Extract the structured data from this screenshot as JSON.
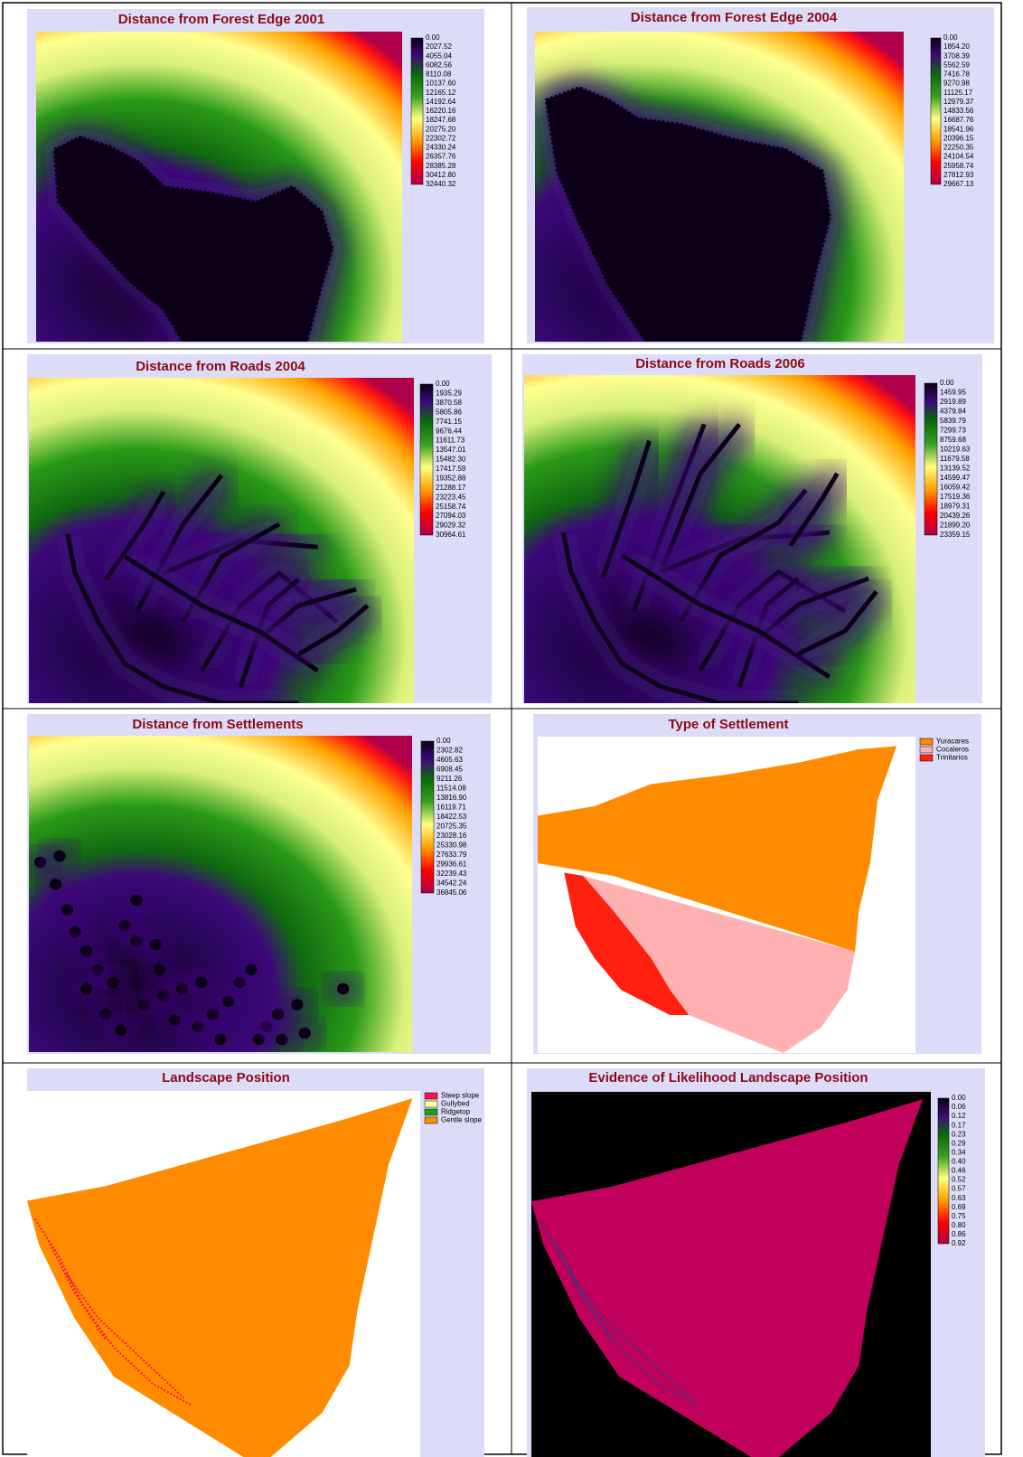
{
  "panels": [
    {
      "title": "Distance from Forest Edge 2001",
      "legend": [
        "0.00",
        "2027.52",
        "4055.04",
        "6082.56",
        "8110.08",
        "10137.60",
        "12165.12",
        "14192.64",
        "16220.16",
        "18247.68",
        "20275.20",
        "22302.72",
        "24330.24",
        "26357.76",
        "28385.28",
        "30412.80",
        "32440.32"
      ]
    },
    {
      "title": "Distance from Forest Edge 2004",
      "legend": [
        "0.00",
        "1854.20",
        "3708.39",
        "5562.59",
        "7416.78",
        "9270.98",
        "11125.17",
        "12979.37",
        "14833.56",
        "16687.76",
        "18541.96",
        "20396.15",
        "22250.35",
        "24104.54",
        "25958.74",
        "27812.93",
        "29667.13"
      ]
    },
    {
      "title": "Distance from Roads 2004",
      "legend": [
        "0.00",
        "1935.29",
        "3870.58",
        "5805.86",
        "7741.15",
        "9676.44",
        "11611.73",
        "13547.01",
        "15482.30",
        "17417.59",
        "19352.88",
        "21288.17",
        "23223.45",
        "25158.74",
        "27094.03",
        "29029.32",
        "30964.61"
      ]
    },
    {
      "title": "Distance from Roads 2006",
      "legend": [
        "0.00",
        "1459.95",
        "2919.89",
        "4379.84",
        "5839.79",
        "7299.73",
        "8759.68",
        "10219.63",
        "11679.58",
        "13139.52",
        "14599.47",
        "16059.42",
        "17519.36",
        "18979.31",
        "20439.26",
        "21899.20",
        "23359.15"
      ]
    },
    {
      "title": "Distance from Settlements",
      "legend": [
        "0.00",
        "2302.82",
        "4605.63",
        "6908.45",
        "9211.26",
        "11514.08",
        "13816.90",
        "16119.71",
        "18422.53",
        "20725.35",
        "23028.16",
        "25330.98",
        "27633.79",
        "29936.61",
        "32239.43",
        "34542.24",
        "36845.06"
      ]
    },
    {
      "title": "Type of Settlement",
      "legend": [
        "Yuracares",
        "Cocaleros",
        "Trinitarios"
      ]
    },
    {
      "title": "Landscape Position",
      "legend": [
        "Steep slope",
        "Gullybed",
        "Ridgetop",
        "Gentle slope"
      ]
    },
    {
      "title": "Evidence of Likelihood Landscape Position",
      "legend": [
        "0.00",
        "0.06",
        "0.12",
        "0.17",
        "0.23",
        "0.29",
        "0.34",
        "0.40",
        "0.46",
        "0.52",
        "0.57",
        "0.63",
        "0.69",
        "0.75",
        "0.80",
        "0.86",
        "0.92"
      ]
    }
  ]
}
